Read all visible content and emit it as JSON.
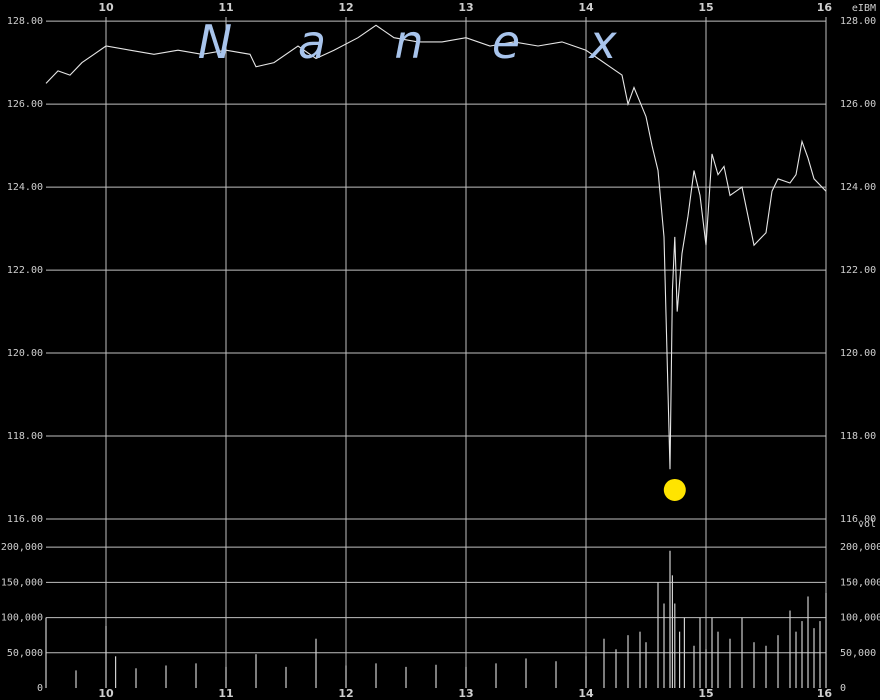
{
  "watermark": [
    "N",
    "a",
    "n",
    "e",
    "x"
  ],
  "symbol_label": "eIBM",
  "volume_label": "vol",
  "colors": {
    "background": "#000000",
    "grid": "#bfbfbf",
    "price_line": "#e6e6e6",
    "volume_bars": "#d0d0d0",
    "marker": "#ffe400",
    "watermark": "#a8c4ec"
  },
  "chart_data": [
    {
      "type": "line",
      "x_ticks": [
        "10",
        "11",
        "12",
        "13",
        "14",
        "15",
        "16"
      ],
      "y_ticks": [
        "128.00",
        "126.00",
        "124.00",
        "122.00",
        "120.00",
        "118.00",
        "116.00"
      ],
      "xlim": [
        9.5,
        16.0
      ],
      "ylim": [
        116.0,
        128.1
      ],
      "grid": true,
      "series": [
        {
          "x": [
            9.5,
            9.6,
            9.7,
            9.8,
            9.9,
            10.0,
            10.2,
            10.4,
            10.6,
            10.8,
            11.0,
            11.2,
            11.25,
            11.4,
            11.6,
            11.75,
            11.9,
            12.1,
            12.25,
            12.4,
            12.6,
            12.8,
            13.0,
            13.2,
            13.4,
            13.6,
            13.8,
            14.0,
            14.1,
            14.2,
            14.3,
            14.35,
            14.4,
            14.5,
            14.55,
            14.6,
            14.65,
            14.7,
            14.72,
            14.74,
            14.76,
            14.8,
            14.85,
            14.9,
            14.95,
            15.0,
            15.05,
            15.1,
            15.15,
            15.2,
            15.3,
            15.4,
            15.5,
            15.55,
            15.6,
            15.7,
            15.75,
            15.8,
            15.85,
            15.9,
            16.0
          ],
          "y": [
            126.5,
            126.8,
            126.7,
            127.0,
            127.2,
            127.4,
            127.3,
            127.2,
            127.3,
            127.2,
            127.3,
            127.2,
            126.9,
            127.0,
            127.4,
            127.1,
            127.3,
            127.6,
            127.9,
            127.6,
            127.5,
            127.5,
            127.6,
            127.4,
            127.5,
            127.4,
            127.5,
            127.3,
            127.1,
            126.9,
            126.7,
            126.0,
            126.4,
            125.7,
            125.0,
            124.4,
            122.8,
            117.2,
            121.5,
            122.8,
            121.0,
            122.4,
            123.3,
            124.4,
            123.8,
            122.6,
            124.8,
            124.3,
            124.5,
            123.8,
            124.0,
            122.6,
            122.9,
            123.9,
            124.2,
            124.1,
            124.3,
            125.1,
            124.7,
            124.2,
            123.9
          ]
        }
      ],
      "annotations": [
        {
          "type": "marker",
          "x": 14.74,
          "y": 116.7
        }
      ]
    },
    {
      "type": "bar",
      "y_ticks": [
        "200,000",
        "150,000",
        "100,000",
        "50,000",
        "0"
      ],
      "ylim": [
        0,
        240000
      ],
      "grid": true,
      "series": [
        {
          "x": [
            9.5,
            9.75,
            10.0,
            10.08,
            10.25,
            10.5,
            10.75,
            11.0,
            11.25,
            11.5,
            11.75,
            12.0,
            12.25,
            12.5,
            12.75,
            13.0,
            13.25,
            13.5,
            13.75,
            14.0,
            14.15,
            14.25,
            14.35,
            14.45,
            14.5,
            14.6,
            14.65,
            14.7,
            14.72,
            14.74,
            14.78,
            14.82,
            14.9,
            14.95,
            15.0,
            15.05,
            15.1,
            15.2,
            15.3,
            15.4,
            15.5,
            15.6,
            15.7,
            15.75,
            15.8,
            15.85,
            15.9,
            15.95,
            16.0
          ],
          "y": [
            100000,
            25000,
            88000,
            45000,
            28000,
            32000,
            35000,
            30000,
            48000,
            30000,
            70000,
            32000,
            35000,
            30000,
            33000,
            30000,
            35000,
            42000,
            38000,
            45000,
            70000,
            55000,
            75000,
            80000,
            65000,
            150000,
            120000,
            195000,
            160000,
            120000,
            80000,
            100000,
            60000,
            100000,
            55000,
            100000,
            80000,
            70000,
            100000,
            65000,
            60000,
            75000,
            110000,
            80000,
            95000,
            130000,
            85000,
            95000,
            135000
          ]
        }
      ]
    }
  ]
}
